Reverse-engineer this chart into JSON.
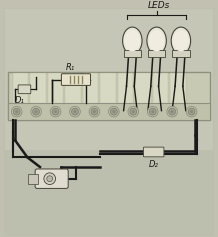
{
  "background_color": "#c2c0b0",
  "breadboard_bg": "#c8c9b2",
  "breadboard_strip_light": "#d8d9c2",
  "breadboard_rail_bg": "#c0c1aa",
  "hole_outer": "#a8a898",
  "hole_inner": "#8a8878",
  "wire_color": "#1a1a1a",
  "led_head_fill": "#e8e6d8",
  "led_collar_fill": "#d4d2c0",
  "resistor_fill": "#e8e2cc",
  "resistor_band": "#888860",
  "diode_fill": "#d8d6c4",
  "component_edge": "#444434",
  "label_color": "#1a1a18",
  "switch_body": "#e0ddd0",
  "switch_edge": "#444434",
  "labels": {
    "leds": "LEDs",
    "r1": "R₁",
    "d1": "D₁",
    "d2": "D₂"
  },
  "figsize": [
    2.18,
    2.37
  ],
  "dpi": 100
}
